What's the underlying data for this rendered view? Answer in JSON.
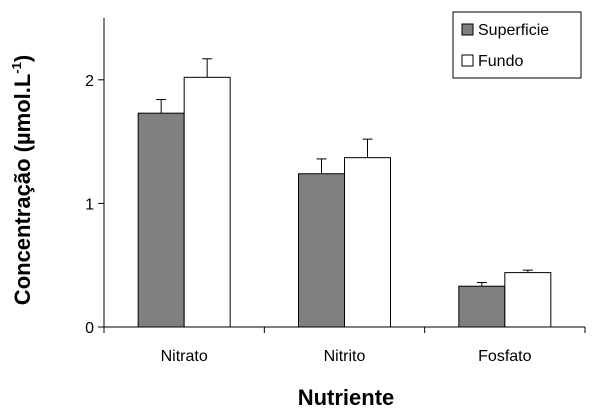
{
  "chart_data": {
    "type": "bar",
    "categories": [
      "Nitrato",
      "Nitrito",
      "Fosfato"
    ],
    "series": [
      {
        "name": "Superficie",
        "values": [
          1.73,
          1.24,
          0.33
        ],
        "errors": [
          0.11,
          0.12,
          0.03
        ],
        "color": "#808080"
      },
      {
        "name": "Fundo",
        "values": [
          2.02,
          1.37,
          0.44
        ],
        "errors": [
          0.15,
          0.15,
          0.02
        ],
        "color": "#ffffff"
      }
    ],
    "title": "",
    "xlabel": "Nutriente",
    "ylabel": "Concentração (µmol.L",
    "ylabel_superscript": "-1",
    "ylabel_suffix": ")",
    "ylim": [
      0,
      2.5
    ],
    "yticks": [
      "0",
      "1",
      "2"
    ],
    "grid": false,
    "legend_position": "top-right",
    "error_bars": true
  }
}
